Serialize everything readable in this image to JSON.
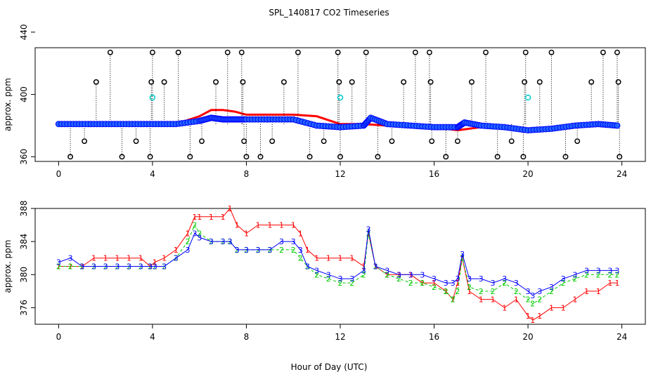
{
  "title": "SPL_140817  CO2 Timeseries",
  "xlabel": "Hour of Day (UTC)",
  "colors": {
    "series1": "#ff0000",
    "series2": "#00cc00",
    "series3": "#0000ff",
    "raw_marker": "#000000",
    "cyan_marker": "#00cccc",
    "blue_fill": "#2266ff"
  },
  "chart_data": [
    {
      "type": "scatter",
      "title": "SPL_140817  CO2 Timeseries",
      "xlabel": "",
      "ylabel": "approx. ppm",
      "xlim": [
        -1,
        25
      ],
      "ylim": [
        357,
        430
      ],
      "xticks": [
        0,
        4,
        8,
        12,
        16,
        20,
        24
      ],
      "yticks": [
        360,
        400,
        440
      ],
      "grid": false,
      "series": [
        {
          "name": "",
          "color": "#ff0000",
          "x": [
            0,
            1,
            2,
            3,
            4,
            5,
            6,
            6.5,
            7,
            7.5,
            8,
            9,
            10,
            11,
            12,
            13,
            14,
            15,
            16,
            17,
            18,
            19,
            20,
            21,
            22,
            23,
            23.8
          ],
          "values": [
            381,
            380,
            381,
            380,
            380,
            381,
            386,
            390,
            390,
            389,
            387,
            387,
            387,
            386,
            381,
            381,
            380,
            380,
            379,
            377,
            379,
            378,
            376,
            377,
            379,
            380,
            380
          ]
        },
        {
          "name": "",
          "color": "#0000ff",
          "x": [
            0,
            1,
            2,
            3,
            4,
            5,
            6,
            6.5,
            7,
            7.5,
            8,
            9,
            10,
            11,
            12,
            13,
            13.3,
            14,
            15,
            16,
            17,
            17.3,
            18,
            19,
            20,
            21,
            22,
            23,
            23.8
          ],
          "values": [
            381,
            381,
            381,
            381,
            381,
            381,
            383,
            385,
            384,
            384,
            384,
            384,
            384,
            380,
            379,
            380,
            385,
            381,
            380,
            379,
            379,
            382,
            380,
            379,
            377,
            378,
            380,
            381,
            380
          ]
        },
        {
          "name": "",
          "color": "#000000",
          "x": [
            0.5,
            1.1,
            1.6,
            2.2,
            2.7,
            3.3,
            3.9,
            3.95,
            4,
            4.5,
            5.1,
            5.6,
            6.1,
            6.7,
            7.2,
            7.8,
            7.85,
            7.9,
            8.0,
            8.6,
            9.1,
            9.6,
            10.2,
            10.7,
            11.3,
            11.9,
            11.95,
            12.0,
            12.5,
            13.1,
            13.6,
            14.2,
            14.7,
            15.2,
            15.8,
            15.85,
            15.9,
            16.5,
            17.0,
            17.6,
            18.2,
            18.7,
            19.3,
            19.8,
            19.85,
            19.9,
            20.5,
            21.0,
            21.6,
            22.1,
            22.7,
            23.2,
            23.8,
            23.85,
            23.9
          ],
          "values": [
            360,
            370,
            408,
            427,
            360,
            370,
            360,
            408,
            427,
            408,
            427,
            360,
            370,
            408,
            427,
            427,
            408,
            370,
            360,
            360,
            370,
            408,
            427,
            360,
            370,
            427,
            408,
            360,
            408,
            427,
            360,
            370,
            408,
            427,
            427,
            408,
            370,
            360,
            370,
            408,
            427,
            360,
            370,
            360,
            408,
            427,
            408,
            427,
            360,
            370,
            408,
            427,
            427,
            408,
            360
          ]
        },
        {
          "name": "",
          "color": "#00cccc",
          "x": [
            4.0,
            12.0,
            20.0
          ],
          "values": [
            398,
            398,
            398
          ]
        }
      ]
    },
    {
      "type": "line",
      "title": "",
      "xlabel": "Hour of Day (UTC)",
      "ylabel": "approx. ppm",
      "xlim": [
        -1,
        25
      ],
      "ylim": [
        374,
        388
      ],
      "xticks": [
        0,
        4,
        8,
        12,
        16,
        20,
        24
      ],
      "yticks": [
        376,
        380,
        384,
        388
      ],
      "grid": false,
      "series": [
        {
          "name": "",
          "label_char": "1",
          "color": "#ff0000",
          "x": [
            0,
            0.5,
            1,
            1.5,
            2,
            2.5,
            3,
            3.5,
            3.9,
            4.1,
            4.5,
            5,
            5.5,
            5.8,
            6,
            6.5,
            7,
            7.3,
            7.6,
            8,
            8.5,
            9,
            9.5,
            10,
            10.3,
            10.6,
            11,
            11.5,
            12,
            12.5,
            13,
            13.2,
            13.5,
            14,
            14.5,
            15,
            15.5,
            16,
            16.5,
            16.8,
            17,
            17.2,
            17.5,
            18,
            18.5,
            19,
            19.5,
            20,
            20.2,
            20.5,
            21,
            21.5,
            22,
            22.5,
            23,
            23.5,
            23.8
          ],
          "values": [
            381,
            381,
            381,
            382,
            382,
            382,
            382,
            382,
            381,
            381.5,
            382,
            383,
            385,
            387,
            387,
            387,
            387,
            388,
            386,
            385,
            386,
            386,
            386,
            386,
            385,
            383,
            382,
            382,
            382,
            382,
            381,
            385,
            381,
            380,
            380,
            380,
            379,
            379,
            378,
            377,
            379,
            382,
            378,
            377,
            377,
            376,
            377,
            375,
            374.5,
            375,
            376,
            376,
            377,
            378,
            378,
            379,
            379
          ]
        },
        {
          "name": "",
          "label_char": "2",
          "color": "#00cc00",
          "x": [
            0,
            0.5,
            1,
            1.5,
            2,
            2.5,
            3,
            3.5,
            3.9,
            4.1,
            4.5,
            5,
            5.5,
            5.8,
            6,
            6.5,
            7,
            7.3,
            7.6,
            8,
            8.5,
            9,
            9.5,
            10,
            10.3,
            10.6,
            11,
            11.5,
            12,
            12.5,
            13,
            13.2,
            13.5,
            14,
            14.5,
            15,
            15.5,
            16,
            16.5,
            16.8,
            17,
            17.2,
            17.5,
            18,
            18.5,
            19,
            19.5,
            20,
            20.2,
            20.5,
            21,
            21.5,
            22,
            22.5,
            23,
            23.5,
            23.8
          ],
          "values": [
            381,
            381,
            381,
            381,
            381,
            381,
            381,
            381,
            381,
            381,
            381,
            382,
            384,
            386,
            385,
            384,
            384,
            384,
            383,
            383,
            383,
            383,
            383,
            383,
            382,
            381,
            380,
            379.5,
            379,
            379,
            380,
            385,
            381,
            380,
            379.5,
            379,
            379,
            378.5,
            378,
            377,
            378,
            382,
            378.5,
            378,
            378,
            379,
            378,
            377,
            376.5,
            377,
            378,
            379,
            379.5,
            380,
            380,
            380,
            380
          ]
        },
        {
          "name": "",
          "label_char": "3",
          "color": "#0000ff",
          "x": [
            0,
            0.5,
            1,
            1.5,
            2,
            2.5,
            3,
            3.5,
            3.9,
            4.1,
            4.5,
            5,
            5.5,
            5.8,
            6,
            6.5,
            7,
            7.3,
            7.6,
            8,
            8.5,
            9,
            9.5,
            10,
            10.3,
            10.6,
            11,
            11.5,
            12,
            12.5,
            13,
            13.2,
            13.5,
            14,
            14.5,
            15,
            15.5,
            16,
            16.5,
            16.8,
            17,
            17.2,
            17.5,
            18,
            18.5,
            19,
            19.5,
            20,
            20.2,
            20.5,
            21,
            21.5,
            22,
            22.5,
            23,
            23.5,
            23.8
          ],
          "values": [
            381.5,
            382,
            381,
            381,
            381,
            381,
            381,
            381,
            381,
            381,
            381,
            382,
            383,
            385,
            384.5,
            384,
            384,
            384,
            383,
            383,
            383,
            383,
            384,
            384,
            383,
            381,
            380.5,
            380,
            379.5,
            379.5,
            380.5,
            385.5,
            381,
            380.5,
            380,
            380,
            380,
            379.5,
            379,
            379,
            379.5,
            382.5,
            379.5,
            379.5,
            379,
            379.5,
            379,
            378,
            377.5,
            378,
            378.5,
            379.5,
            380,
            380.5,
            380.5,
            380.5,
            380.5
          ]
        }
      ]
    }
  ]
}
